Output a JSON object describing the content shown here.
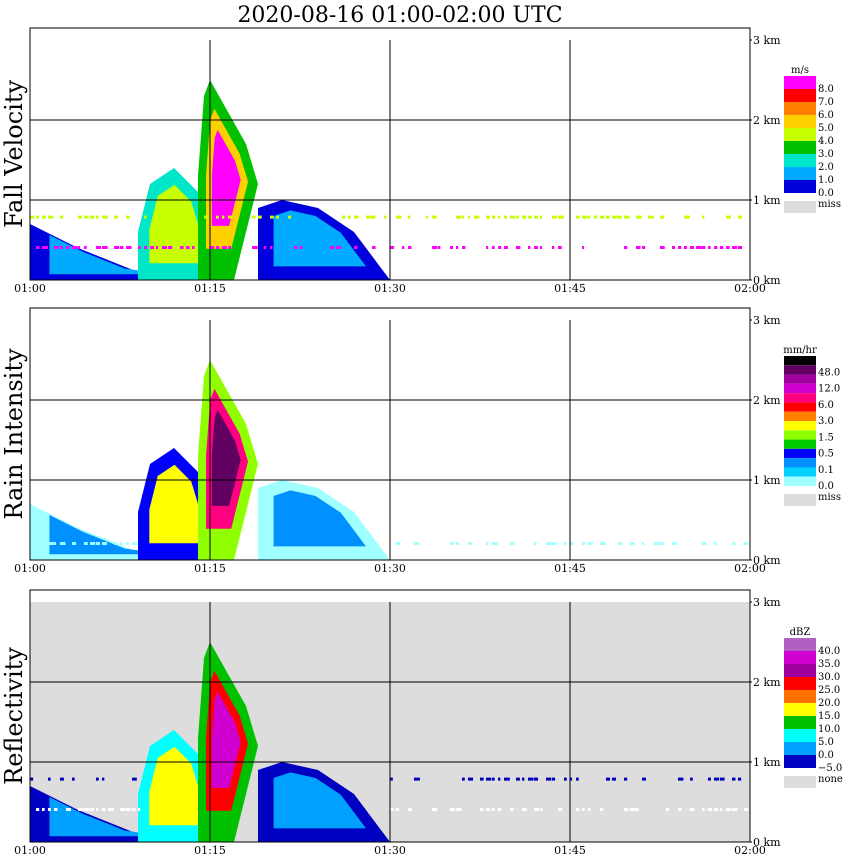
{
  "chart_data": {
    "type": "heatmap",
    "title": "2020-08-16   01:00-02:00 UTC",
    "time_ticks": [
      "01:00",
      "01:15",
      "01:30",
      "01:45",
      "02:00"
    ],
    "height_ticks": [
      "0 km",
      "1 km",
      "2 km",
      "3 km"
    ],
    "xlim": [
      "01:00",
      "02:00"
    ],
    "ylim_km": [
      0,
      3
    ],
    "grid": true,
    "panels": [
      {
        "name": "fall-velocity",
        "ylabel": "Fall Velocity",
        "unit": "m/s",
        "background": "#ffffff",
        "levels": [
          "8.0",
          "7.0",
          "6.0",
          "5.0",
          "4.0",
          "3.0",
          "2.0",
          "1.0",
          "0.0"
        ],
        "colors": [
          "#ff00ff",
          "#ff0000",
          "#ff8000",
          "#ffd000",
          "#c8ff00",
          "#00c000",
          "#00e6c8",
          "#00aaff",
          "#0000dd",
          "#ffffff"
        ],
        "miss_label": "miss",
        "miss_color": "#dddddd"
      },
      {
        "name": "rain-intensity",
        "ylabel": "Rain Intensity",
        "unit": "mm/hr",
        "background": "#ffffff",
        "levels": [
          "48.0",
          "12.0",
          "6.0",
          "3.0",
          "1.5",
          "0.5",
          "0.1",
          "0.0"
        ],
        "colors": [
          "#000000",
          "#600060",
          "#a000a0",
          "#d000d0",
          "#ff0080",
          "#ff0000",
          "#ff8000",
          "#ffff00",
          "#90ff00",
          "#00cc00",
          "#0000ff",
          "#0090ff",
          "#00d0ff",
          "#a0ffff",
          "#ffffff"
        ],
        "miss_label": "miss",
        "miss_color": "#dddddd"
      },
      {
        "name": "reflectivity",
        "ylabel": "Reflectivity",
        "unit": "dBZ",
        "background": "#dddddd",
        "levels": [
          "40.0",
          "35.0",
          "30.0",
          "25.0",
          "20.0",
          "15.0",
          "10.0",
          "5.0",
          "0.0",
          "−5.0"
        ],
        "colors": [
          "#b060c0",
          "#d000d0",
          "#a000a0",
          "#ff0000",
          "#ff7000",
          "#ffff00",
          "#00c000",
          "#00ffff",
          "#00a0ff",
          "#0000c0",
          "#ffffff"
        ],
        "miss_label": "none",
        "miss_color": "#dddddd"
      }
    ]
  }
}
